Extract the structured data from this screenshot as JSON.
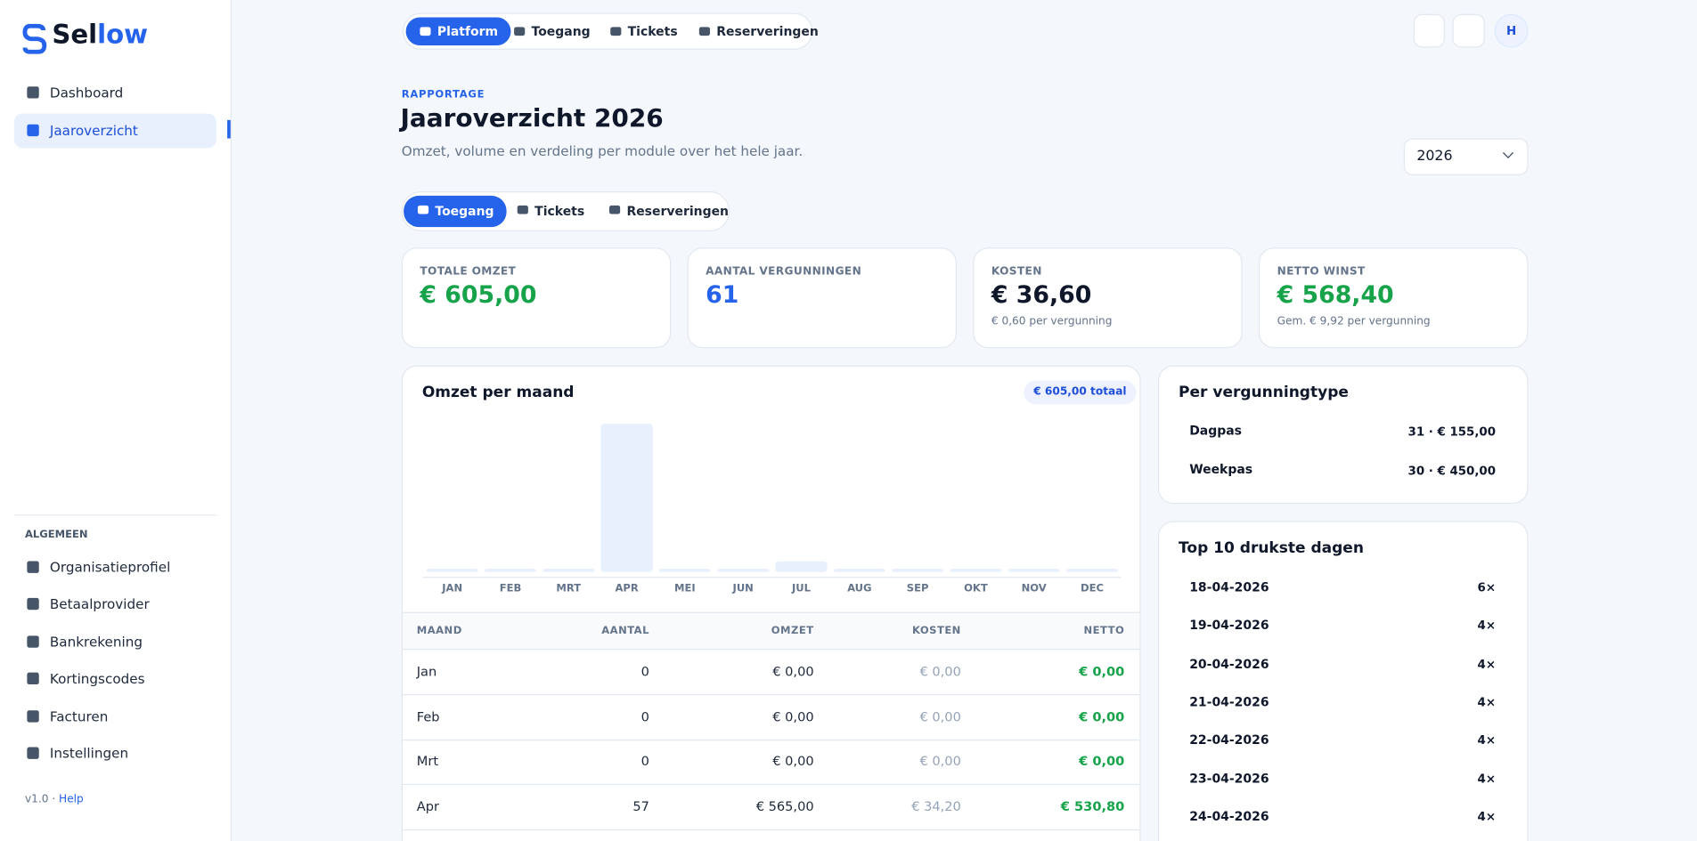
{
  "brand": {
    "dark": "Sel",
    "accent": "low"
  },
  "sidebar": {
    "nav": [
      "Dashboard",
      "Jaaroverzicht"
    ],
    "active": 1,
    "section": "ALGEMEEN",
    "items": [
      "Organisatieprofiel",
      "Betaalprovider",
      "Bankrekening",
      "Kortingscodes",
      "Facturen",
      "Instellingen"
    ],
    "version": "v1.0 ·",
    "help": "Help"
  },
  "topnav": {
    "tabs": [
      "Platform",
      "Toegang",
      "Tickets",
      "Reserveringen"
    ],
    "active": 0,
    "avatar": "H"
  },
  "header": {
    "eyebrow": "RAPPORTAGE",
    "title": "Jaaroverzicht 2026",
    "subtitle": "Omzet, volume en verdeling per module over het hele jaar.",
    "year": "2026"
  },
  "tabs": {
    "items": [
      "Toegang",
      "Tickets",
      "Reserveringen"
    ],
    "active": 0
  },
  "kpis": [
    {
      "label": "TOTALE OMZET",
      "value": "€ 605,00",
      "color": "#16a34a"
    },
    {
      "label": "AANTAL VERGUNNINGEN",
      "value": "61",
      "color": "#2563eb"
    },
    {
      "label": "KOSTEN",
      "value": "€ 36,60",
      "note": "€ 0,60 per vergunning",
      "color": "#0f172a"
    },
    {
      "label": "NETTO WINST",
      "value": "€ 568,40",
      "note": "Gem. € 9,92 per vergunning",
      "color": "#16a34a"
    }
  ],
  "chart_data": {
    "type": "bar",
    "title": "Omzet per maand",
    "badge": "€ 605,00 totaal",
    "categories": [
      "JAN",
      "FEB",
      "MRT",
      "APR",
      "MEI",
      "JUN",
      "JUL",
      "AUG",
      "SEP",
      "OKT",
      "NOV",
      "DEC"
    ],
    "values": [
      0,
      0,
      0,
      565,
      0,
      0,
      40,
      0,
      0,
      0,
      0,
      0
    ],
    "color": "#e9f0fd"
  },
  "table": {
    "columns": [
      "MAAND",
      "AANTAL",
      "OMZET",
      "KOSTEN",
      "NETTO"
    ],
    "rows": [
      [
        "Jan",
        0,
        "€ 0,00",
        "€ 0,00",
        "€ 0,00"
      ],
      [
        "Feb",
        0,
        "€ 0,00",
        "€ 0,00",
        "€ 0,00"
      ],
      [
        "Mrt",
        0,
        "€ 0,00",
        "€ 0,00",
        "€ 0,00"
      ],
      [
        "Apr",
        57,
        "€ 565,00",
        "€ 34,20",
        "€ 530,80"
      ]
    ]
  },
  "types": {
    "title": "Per vergunningtype",
    "rows": [
      {
        "name": "Dagpas",
        "detail": "31 · € 155,00"
      },
      {
        "name": "Weekpas",
        "detail": "30 · € 450,00"
      }
    ]
  },
  "top_days": {
    "title": "Top 10 drukste dagen",
    "rows": [
      [
        "18-04-2026",
        "6×"
      ],
      [
        "19-04-2026",
        "4×"
      ],
      [
        "20-04-2026",
        "4×"
      ],
      [
        "21-04-2026",
        "4×"
      ],
      [
        "22-04-2026",
        "4×"
      ],
      [
        "23-04-2026",
        "4×"
      ],
      [
        "24-04-2026",
        "4×"
      ]
    ]
  }
}
